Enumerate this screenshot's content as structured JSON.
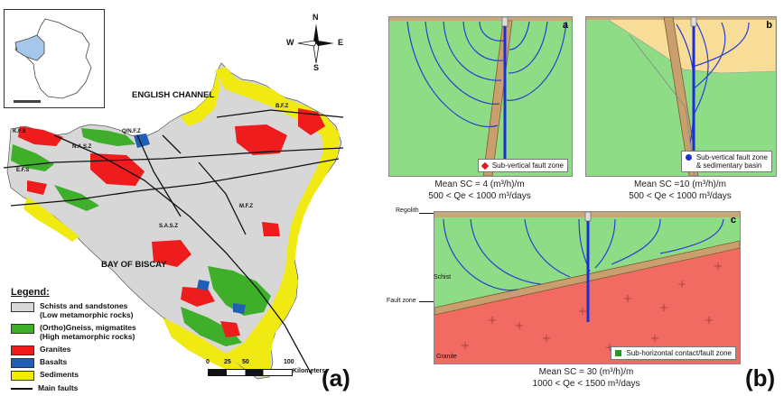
{
  "panel_a": {
    "letter": "(a)",
    "sea_labels": {
      "north": "ENGLISH CHANNEL",
      "south": "BAY OF BISCAY"
    },
    "compass": {
      "n": "N",
      "s": "S",
      "e": "E",
      "w": "W"
    },
    "fault_labels": {
      "kfs": "K.F.S",
      "qnfz": "Q/N.F.Z",
      "nasz": "N.A.S.Z",
      "efs": "E.F.S",
      "bfz": "B.F.Z",
      "mfz": "M.F.Z",
      "sasz": "S.A.S.Z"
    },
    "legend": {
      "title": "Legend:",
      "items": [
        {
          "label": "Schists and sandstones\n(Low metamorphic rocks)",
          "color": "#d9d9d9"
        },
        {
          "label": "(Ortho)Gneiss, migmatites\n(High metamorphic rocks)",
          "color": "#3fae2a"
        },
        {
          "label": "Granites",
          "color": "#ee1c1c"
        },
        {
          "label": "Basalts",
          "color": "#1f5fb5"
        },
        {
          "label": "Sediments",
          "color": "#f2ec00"
        }
      ],
      "faults_label": "Main faults"
    },
    "scale": {
      "ticks": [
        "0",
        "25",
        "50",
        "100"
      ],
      "unit": "Kilometers"
    }
  },
  "panel_b": {
    "letter": "(b)",
    "sub_a": {
      "letter": "a",
      "legend": "Sub-vertical fault zone",
      "caption_line1": "Mean SC = 4 (m³/h)/m",
      "caption_line2": "500 < Qe < 1000 m³/days"
    },
    "sub_b": {
      "letter": "b",
      "legend": "Sub-vertical fault zone\n& sedimentary basin",
      "caption_line1": "Mean SC  =10 (m³/h)/m",
      "caption_line2": "500 < Qe < 1000 m³/days"
    },
    "sub_c": {
      "letter": "c",
      "legend": "Sub-horizontal contact/fault zone",
      "caption_line1": "Mean SC = 30 (m³/h)/m",
      "caption_line2": "1000 < Qe < 1500 m³/days",
      "labels": {
        "regolith": "Regolith",
        "schist": "Schist",
        "fault_zone": "Fault zone",
        "granite": "Granite"
      }
    },
    "colors": {
      "schist": "#8fdc86",
      "granite": "#f26b63",
      "sediment": "#f7dd97",
      "regolith": "#c8a87a",
      "flow": "#2a3fd0",
      "well": "#1b2fd8"
    }
  }
}
